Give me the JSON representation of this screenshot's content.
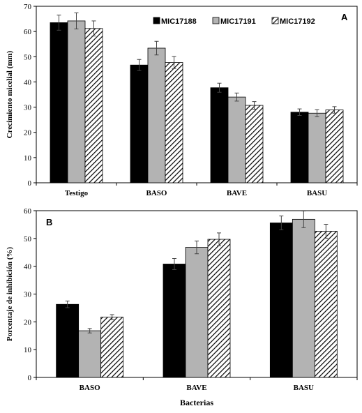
{
  "series_styles": [
    {
      "fill": "#000000",
      "pattern": "solid"
    },
    {
      "fill": "#b3b3b3",
      "pattern": "solid"
    },
    {
      "fill": "#ffffff",
      "pattern": "diagonal-hatch"
    }
  ],
  "chart_data": [
    {
      "type": "bar",
      "panel_label": "A",
      "ylabel": "Crecimiento micelial (mm)",
      "xlabel": "",
      "ylim": [
        0,
        70
      ],
      "yticks": [
        0,
        10,
        20,
        30,
        40,
        50,
        60,
        70
      ],
      "categories": [
        "Testigo",
        "BASO",
        "BAVE",
        "BASU"
      ],
      "legend_position": "top-right",
      "series": [
        {
          "name": "MIC17188",
          "values": [
            63.5,
            46.7,
            37.7,
            28.0
          ],
          "errors": [
            3.0,
            2.2,
            1.8,
            1.3
          ]
        },
        {
          "name": "MIC17191",
          "values": [
            64.2,
            53.4,
            34.0,
            27.6
          ],
          "errors": [
            3.2,
            2.7,
            1.6,
            1.4
          ]
        },
        {
          "name": "MIC17192",
          "values": [
            61.2,
            47.7,
            30.7,
            28.9
          ],
          "errors": [
            3.0,
            2.4,
            1.5,
            1.3
          ]
        }
      ]
    },
    {
      "type": "bar",
      "panel_label": "B",
      "ylabel": "Porcentaje de inhibición (%)",
      "xlabel": "Bacterias",
      "ylim": [
        0,
        60
      ],
      "yticks": [
        0,
        10,
        20,
        30,
        40,
        50,
        60
      ],
      "categories": [
        "BASO",
        "BAVE",
        "BASU"
      ],
      "series": [
        {
          "name": "MIC17188",
          "values": [
            26.3,
            40.8,
            55.6
          ],
          "errors": [
            1.2,
            2.0,
            2.5
          ]
        },
        {
          "name": "MIC17191",
          "values": [
            16.8,
            46.8,
            56.9
          ],
          "errors": [
            0.8,
            2.3,
            3.0
          ]
        },
        {
          "name": "MIC17192",
          "values": [
            21.7,
            49.7,
            52.6
          ],
          "errors": [
            0.9,
            2.3,
            2.5
          ]
        }
      ]
    }
  ]
}
